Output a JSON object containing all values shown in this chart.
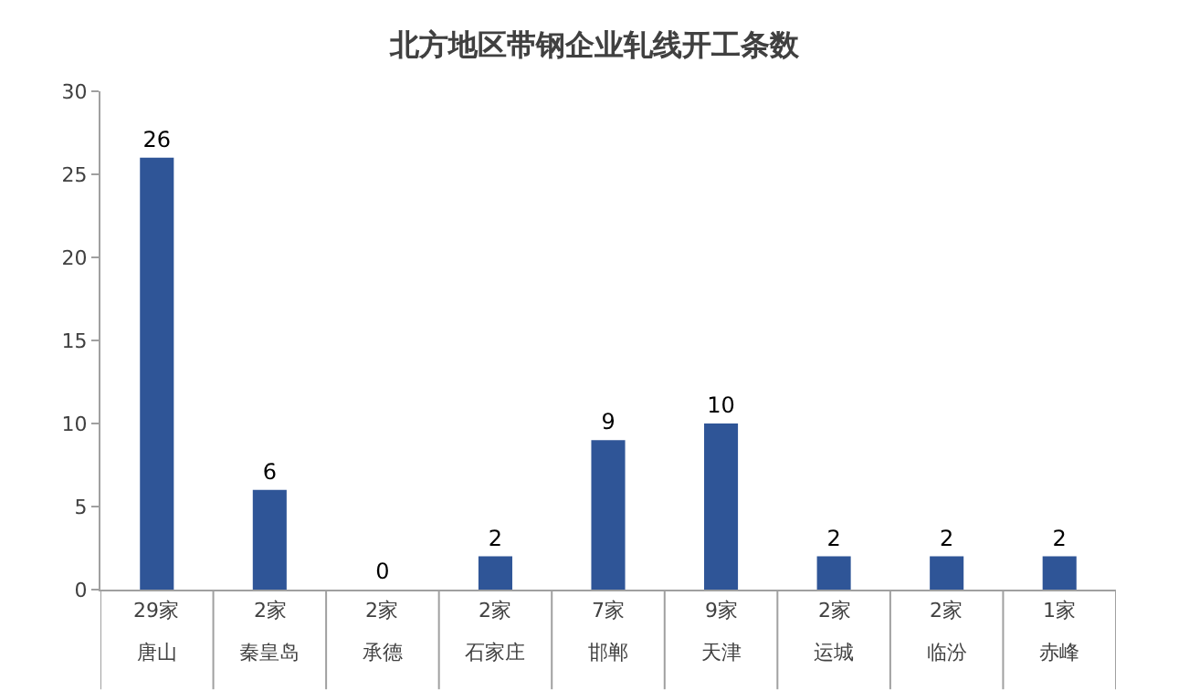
{
  "chart_data": {
    "type": "bar",
    "title": "北方地区带钢企业轧线开工条数",
    "categories": [
      "唐山",
      "秦皇岛",
      "承德",
      "石家庄",
      "邯郸",
      "天津",
      "运城",
      "临汾",
      "赤峰"
    ],
    "values": [
      26,
      6,
      0,
      2,
      9,
      10,
      2,
      2,
      2
    ],
    "annotations": [
      "29家",
      "2家",
      "2家",
      "2家",
      "7家",
      "9家",
      "2家",
      "2家",
      "1家"
    ],
    "color": "#2f5597",
    "ylim": [
      0,
      30
    ],
    "yticks": [
      0,
      5,
      10,
      15,
      20,
      25,
      30
    ],
    "data_labels": true
  }
}
